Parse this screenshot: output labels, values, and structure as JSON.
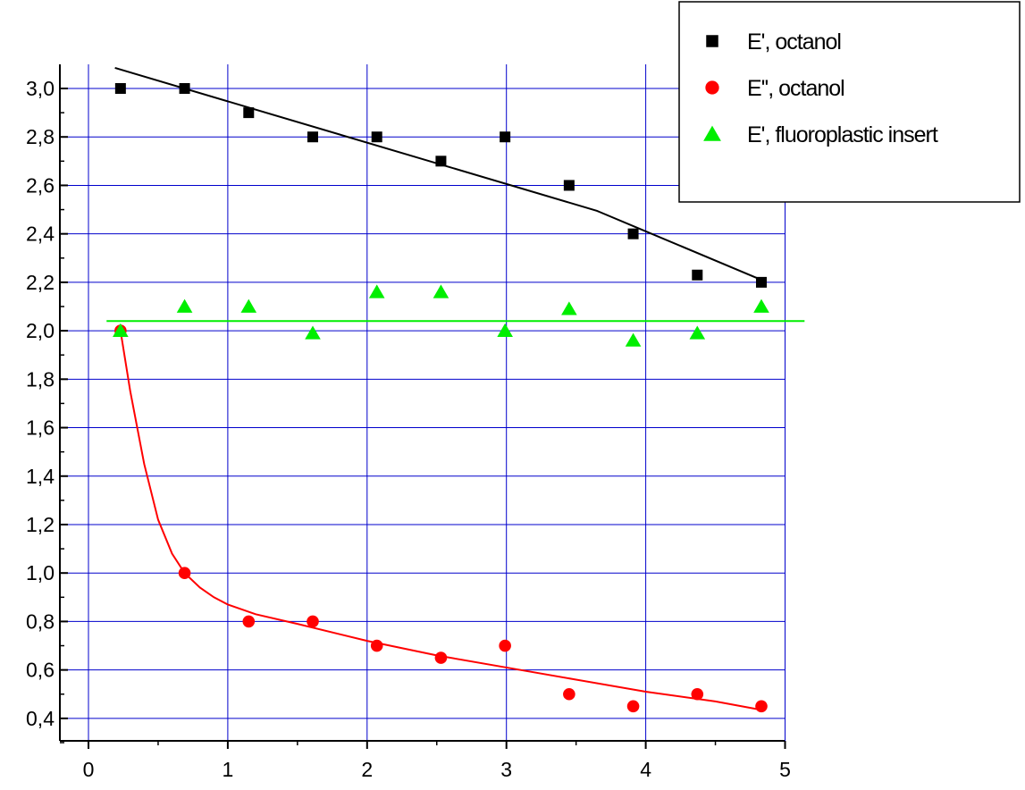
{
  "chart_data": {
    "type": "scatter",
    "title": "",
    "xlabel": "",
    "ylabel": "",
    "xlim": [
      0,
      5
    ],
    "ylim": [
      0.3,
      3.1
    ],
    "x_ticks": [
      0,
      1,
      2,
      3,
      4,
      5
    ],
    "x_tick_labels": [
      "0",
      "1",
      "2",
      "3",
      "4",
      "5"
    ],
    "y_ticks": [
      0.4,
      0.6,
      0.8,
      1.0,
      1.2,
      1.4,
      1.6,
      1.8,
      2.0,
      2.2,
      2.4,
      2.6,
      2.8,
      3.0
    ],
    "y_tick_labels": [
      "0,4",
      "0,6",
      "0,8",
      "1,0",
      "1,2",
      "1,4",
      "1,6",
      "1,8",
      "2,0",
      "2,2",
      "2,4",
      "2,6",
      "2,8",
      "3,0"
    ],
    "grid": true,
    "grid_color": "#0000cc",
    "legend_position": "top-right",
    "series": [
      {
        "name": "E', octanol",
        "marker": "square",
        "color": "#000000",
        "x": [
          0.23,
          0.69,
          1.15,
          1.61,
          2.07,
          2.53,
          2.99,
          3.45,
          3.91,
          4.37,
          4.83
        ],
        "y": [
          3.0,
          3.0,
          2.9,
          2.8,
          2.8,
          2.7,
          2.8,
          2.6,
          2.4,
          2.23,
          2.2
        ],
        "fit": {
          "type": "linear",
          "color": "#000000",
          "x": [
            0.19,
            3.65,
            3.67,
            4.83
          ],
          "y": [
            3.085,
            2.495,
            2.49,
            2.21
          ]
        }
      },
      {
        "name": "E'', octanol",
        "marker": "circle",
        "color": "#ff0000",
        "x": [
          0.23,
          0.69,
          1.15,
          1.61,
          2.07,
          2.53,
          2.99,
          3.45,
          3.91,
          4.37,
          4.83
        ],
        "y": [
          2.0,
          1.0,
          0.8,
          0.8,
          0.7,
          0.65,
          0.7,
          0.5,
          0.45,
          0.5,
          0.45
        ],
        "fit": {
          "type": "curve",
          "color": "#ff0000",
          "x": [
            0.23,
            0.3,
            0.4,
            0.5,
            0.6,
            0.69,
            0.8,
            0.9,
            1.0,
            1.2,
            1.5,
            2.0,
            2.5,
            3.0,
            3.5,
            4.0,
            4.5,
            4.83
          ],
          "y": [
            2.0,
            1.75,
            1.45,
            1.22,
            1.08,
            1.0,
            0.94,
            0.9,
            0.87,
            0.83,
            0.79,
            0.72,
            0.66,
            0.61,
            0.56,
            0.51,
            0.47,
            0.435
          ]
        }
      },
      {
        "name": "E', fluoroplastic insert",
        "marker": "triangle",
        "color": "#00ee00",
        "x": [
          0.23,
          0.69,
          1.15,
          1.61,
          2.07,
          2.53,
          2.99,
          3.45,
          3.91,
          4.37,
          4.83
        ],
        "y": [
          2.0,
          2.1,
          2.1,
          1.99,
          2.16,
          2.16,
          2.0,
          2.09,
          1.96,
          1.99,
          2.1
        ],
        "fit": {
          "type": "constant",
          "color": "#00ee00",
          "x": [
            0.13,
            5.14
          ],
          "y": [
            2.04,
            2.04
          ]
        }
      }
    ]
  }
}
